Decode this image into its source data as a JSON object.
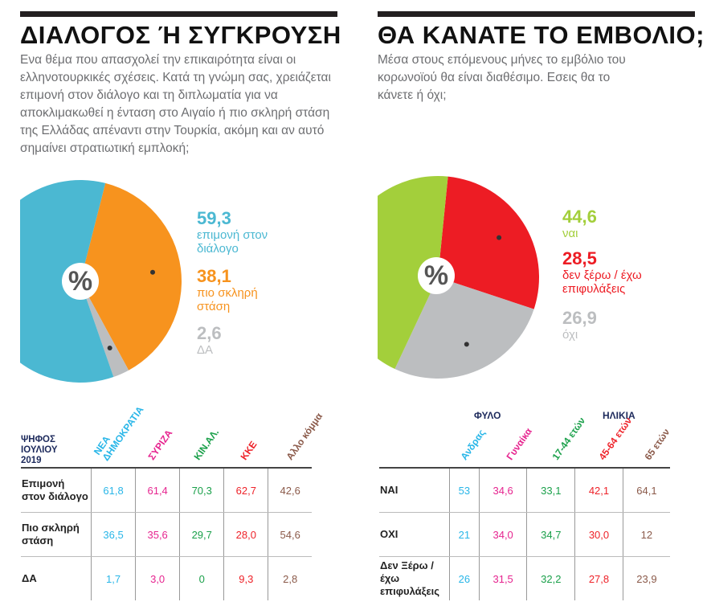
{
  "left": {
    "title": "ΔΙΑΛΟΓΟΣ Ή ΣΥΓΚΡΟΥΣΗ",
    "question": "Ενα θέμα που απασχολεί την επικαιρότητα είναι οι ελληνοτουρκικές σχέσεις. Κατά τη γνώμη σας, χρειάζεται επιμονή στον διάλογο και τη διπλωματία για να αποκλιμακωθεί η ένταση στο Αιγαίο ή πιο σκληρή στάση της Ελλάδας απέναντι στην Τουρκία, ακόμη και αν αυτό σημαίνει στρατιωτική εμπλοκή;",
    "pct_symbol": "%",
    "table_header": "ΨΗΦΟΣ ΙΟΥΛΙΟΥ 2019",
    "columns": [
      {
        "label": "ΝΕΑ ΔΗΜΟΚΡΑΤΙΑ",
        "color": "#29b6e8"
      },
      {
        "label": "ΣΥΡΙΖΑ",
        "color": "#e6248f"
      },
      {
        "label": "ΚΙΝ.ΑΛ.",
        "color": "#1aa04a"
      },
      {
        "label": "ΚΚΕ",
        "color": "#ee2229"
      },
      {
        "label": "Αλλο κόμμα",
        "color": "#8b5a4a"
      }
    ],
    "rows": [
      {
        "label": "Επιμονή στον διάλογο",
        "values": [
          "61,8",
          "61,4",
          "70,3",
          "62,7",
          "42,6"
        ]
      },
      {
        "label": "Πιο σκληρή στάση",
        "values": [
          "36,5",
          "35,6",
          "29,7",
          "28,0",
          "54,6"
        ]
      },
      {
        "label": "ΔΑ",
        "values": [
          "1,7",
          "3,0",
          "0",
          "9,3",
          "2,8"
        ]
      }
    ]
  },
  "right": {
    "title": "ΘΑ ΚΑΝΑΤΕ ΤΟ ΕΜΒΟΛΙΟ;",
    "question": "Μέσα στους επόμενους μήνες το εμβόλιο του κορωνοϊού θα είναι διαθέσιμο. Εσεις θα το κάνετε ή όχι;",
    "pct_symbol": "%",
    "group_sex": "ΦΥΛΟ",
    "group_age": "ΗΛΙΚΙΑ",
    "columns": [
      {
        "label": "Ανδρας",
        "color": "#29b6e8"
      },
      {
        "label": "Γυναίκα",
        "color": "#e6248f"
      },
      {
        "label": "17-44 ετών",
        "color": "#1aa04a"
      },
      {
        "label": "45-64 ετών",
        "color": "#ee2229"
      },
      {
        "label": "65 ετών",
        "color": "#8b5a4a"
      }
    ],
    "rows": [
      {
        "label": "ΝΑΙ",
        "values": [
          "53",
          "34,6",
          "33,1",
          "42,1",
          "64,1"
        ]
      },
      {
        "label": "ΟΧΙ",
        "values": [
          "21",
          "34,0",
          "34,7",
          "30,0",
          "12"
        ]
      },
      {
        "label": "Δεν Ξέρω / έχω επιφυλάξεις",
        "values": [
          "26",
          "31,5",
          "32,2",
          "27,8",
          "23,9"
        ]
      }
    ]
  },
  "chart_data": [
    {
      "type": "pie",
      "slices": [
        {
          "label": "επιμονή στον διάλογο",
          "value": 59.3,
          "display": "59,3",
          "color": "#4bb8d2"
        },
        {
          "label": "πιο σκληρή στάση",
          "value": 38.1,
          "display": "38,1",
          "color": "#f7931e"
        },
        {
          "label": "ΔΑ",
          "value": 2.6,
          "display": "2,6",
          "color": "#bcbec0"
        }
      ]
    },
    {
      "type": "pie",
      "slices": [
        {
          "label": "ναι",
          "value": 44.6,
          "display": "44,6",
          "color": "#a3cf3b"
        },
        {
          "label": "δεν ξέρω / έχω επιφυλάξεις",
          "value": 28.5,
          "display": "28,5",
          "color": "#ed1c24"
        },
        {
          "label": "όχι",
          "value": 26.9,
          "display": "26,9",
          "color": "#bcbec0"
        }
      ]
    }
  ]
}
